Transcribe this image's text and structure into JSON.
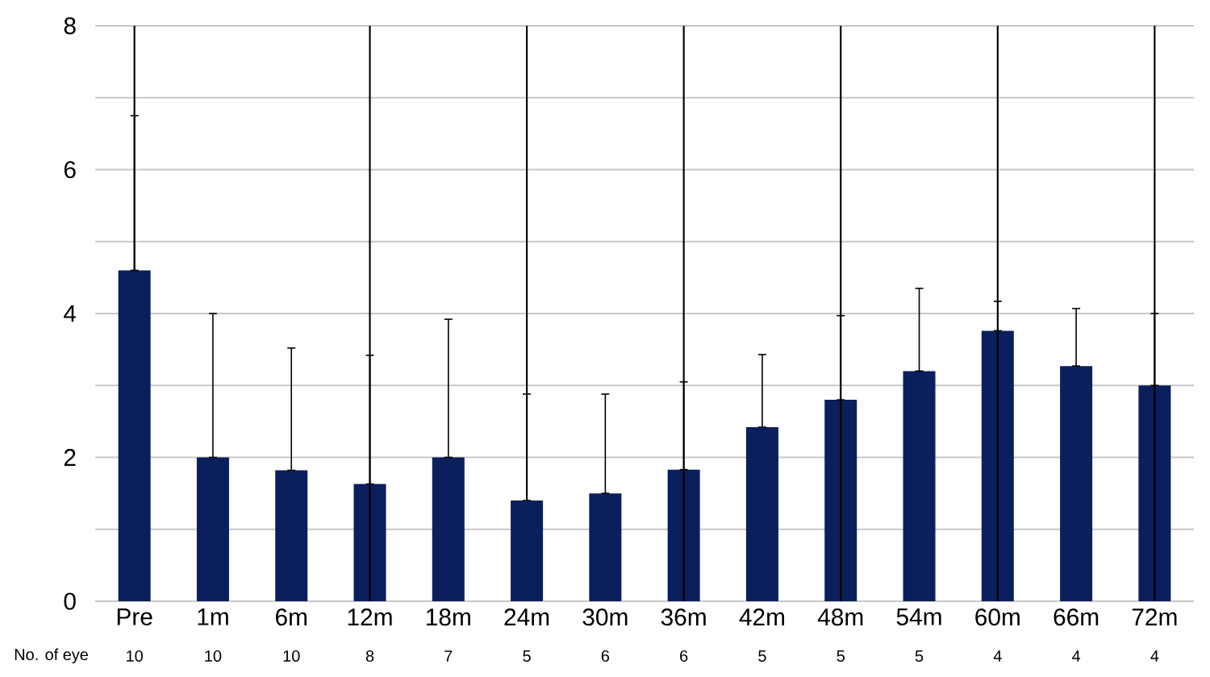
{
  "chart_data": {
    "type": "bar",
    "categories": [
      "Pre",
      "1m",
      "6m",
      "12m",
      "18m",
      "24m",
      "30m",
      "36m",
      "42m",
      "48m",
      "54m",
      "60m",
      "66m",
      "72m"
    ],
    "series": [
      {
        "type": "bar",
        "color": "#0a1f5c",
        "values": [
          4.6,
          2.0,
          1.82,
          1.63,
          2.0,
          1.4,
          1.5,
          1.83,
          2.42,
          2.8,
          3.2,
          3.76,
          3.27,
          3.0
        ],
        "errors": [
          [
            4.6,
            6.75
          ],
          [
            2.0,
            4.0
          ],
          [
            1.82,
            3.52
          ],
          [
            1.63,
            3.42
          ],
          [
            2.0,
            3.92
          ],
          [
            1.4,
            2.88
          ],
          [
            1.5,
            2.88
          ],
          [
            1.83,
            3.05
          ],
          [
            2.42,
            3.43
          ],
          [
            2.8,
            3.97
          ],
          [
            3.2,
            4.35
          ],
          [
            3.76,
            4.17
          ],
          [
            3.27,
            4.07
          ],
          [
            3.0,
            4.0
          ]
        ]
      },
      {
        "type": "bar",
        "color": "#000000",
        "base": [
          4.6,
          null,
          null,
          0,
          null,
          1.4,
          null,
          0,
          null,
          0,
          null,
          0,
          null,
          0
        ],
        "values": [
          3.4,
          null,
          null,
          8,
          null,
          6.6,
          null,
          8,
          null,
          8,
          null,
          8,
          null,
          8
        ]
      }
    ],
    "ylim": [
      0,
      8
    ],
    "yticks": [
      0,
      {
        "value": 1,
        "label": null
      },
      2,
      {
        "value": 3,
        "label": null
      },
      4,
      {
        "value": 5,
        "label": null
      },
      6,
      {
        "value": 7,
        "label": null
      },
      8
    ],
    "grid": "y",
    "annotations": [
      "No. of eye",
      "10",
      "10",
      "10",
      "8",
      "7",
      "5",
      "6",
      "6",
      "5",
      "5",
      "5",
      "4",
      "4",
      "4"
    ]
  }
}
